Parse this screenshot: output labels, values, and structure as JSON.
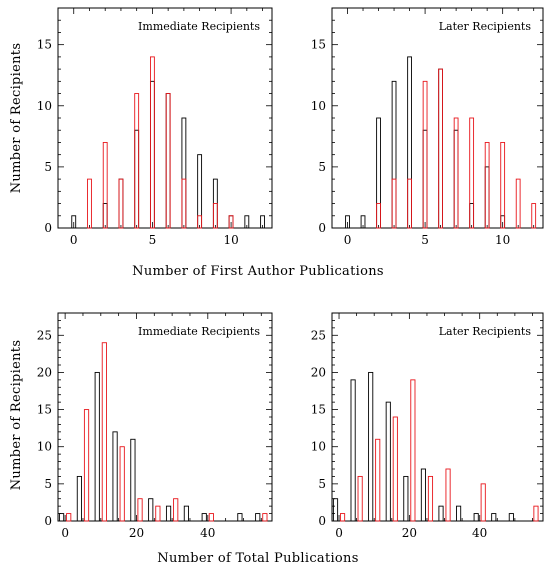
{
  "colors": {
    "series_a": "#000000",
    "series_b": "#e8161b"
  },
  "labels": {
    "ylabel": "Number of Recipients",
    "xlabel_top": "Number of First Author Publications",
    "xlabel_bottom": "Number of Total Publications"
  },
  "chart_data": [
    {
      "type": "bar",
      "title": "Immediate Recipients",
      "xlim": [
        -1,
        12.6
      ],
      "ylim": [
        0,
        18
      ],
      "xticks": [
        0,
        5,
        10
      ],
      "yticks": [
        0,
        5,
        10,
        15
      ],
      "bin_width": 0.25,
      "series": [
        {
          "color": "black",
          "x": [
            0,
            2,
            3,
            4,
            5,
            6,
            7,
            8,
            9,
            10,
            11,
            12
          ],
          "values": [
            1,
            2,
            4,
            8,
            12,
            11,
            9,
            6,
            4,
            1,
            1,
            1
          ]
        },
        {
          "color": "red",
          "x": [
            1,
            2,
            3,
            4,
            5,
            6,
            7,
            8,
            9,
            10
          ],
          "values": [
            4,
            7,
            4,
            11,
            14,
            11,
            4,
            1,
            2,
            1
          ]
        }
      ]
    },
    {
      "type": "bar",
      "title": "Later Recipients",
      "xlim": [
        -1,
        12.6
      ],
      "ylim": [
        0,
        18
      ],
      "xticks": [
        0,
        5,
        10
      ],
      "yticks": [
        0,
        5,
        10,
        15
      ],
      "bin_width": 0.25,
      "series": [
        {
          "color": "black",
          "x": [
            0,
            1,
            2,
            3,
            4,
            5,
            6,
            7,
            8,
            9,
            10
          ],
          "values": [
            1,
            1,
            9,
            12,
            14,
            8,
            13,
            8,
            2,
            5,
            1
          ]
        },
        {
          "color": "red",
          "x": [
            2,
            3,
            4,
            5,
            6,
            7,
            8,
            9,
            10,
            11,
            12
          ],
          "values": [
            2,
            4,
            4,
            12,
            13,
            9,
            9,
            7,
            7,
            4,
            2
          ]
        }
      ]
    },
    {
      "type": "bar",
      "title": "Immediate Recipients",
      "xlim": [
        -2,
        58
      ],
      "ylim": [
        0,
        28
      ],
      "xticks": [
        0,
        20,
        40
      ],
      "yticks": [
        0,
        5,
        10,
        15,
        20,
        25
      ],
      "bin_width": 1.2,
      "series": [
        {
          "color": "black",
          "x": [
            -1,
            4,
            9,
            14,
            19,
            24,
            29,
            34,
            39,
            49,
            54
          ],
          "values": [
            1,
            6,
            20,
            12,
            11,
            3,
            2,
            2,
            1,
            1,
            1
          ]
        },
        {
          "color": "red",
          "x": [
            1,
            6,
            11,
            16,
            21,
            26,
            31,
            41,
            56
          ],
          "values": [
            1,
            15,
            24,
            10,
            3,
            2,
            3,
            1,
            1
          ]
        }
      ]
    },
    {
      "type": "bar",
      "title": "Later Recipients",
      "xlim": [
        -2,
        58
      ],
      "ylim": [
        0,
        28
      ],
      "xticks": [
        0,
        20,
        40
      ],
      "yticks": [
        0,
        5,
        10,
        15,
        20,
        25
      ],
      "bin_width": 1.2,
      "series": [
        {
          "color": "black",
          "x": [
            -1,
            4,
            9,
            14,
            19,
            24,
            29,
            34,
            39,
            44,
            49
          ],
          "values": [
            3,
            19,
            20,
            16,
            6,
            7,
            2,
            2,
            1,
            1,
            1
          ]
        },
        {
          "color": "red",
          "x": [
            1,
            6,
            11,
            16,
            21,
            26,
            31,
            41,
            56
          ],
          "values": [
            1,
            6,
            11,
            14,
            19,
            6,
            7,
            5,
            2
          ]
        }
      ]
    }
  ]
}
